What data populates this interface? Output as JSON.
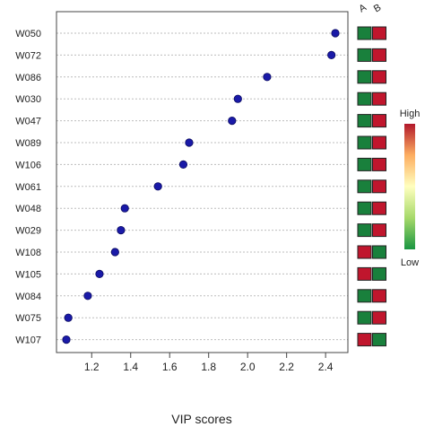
{
  "chart_data": {
    "type": "scatter",
    "title": "",
    "xlabel": "VIP scores",
    "ylabel": "",
    "xlim": [
      1.05,
      2.5
    ],
    "xticks": [
      "1.2",
      "1.4",
      "1.6",
      "1.8",
      "2.0",
      "2.2",
      "2.4"
    ],
    "grid": true,
    "categories": [
      "W050",
      "W072",
      "W086",
      "W030",
      "W047",
      "W089",
      "W106",
      "W061",
      "W048",
      "W029",
      "W108",
      "W105",
      "W084",
      "W075",
      "W107"
    ],
    "values": [
      2.45,
      2.43,
      2.1,
      1.95,
      1.92,
      1.7,
      1.67,
      1.54,
      1.37,
      1.35,
      1.32,
      1.24,
      1.18,
      1.08,
      1.07
    ],
    "point_color": "#1a1aa8",
    "heatmap": {
      "columns": [
        "A",
        "B"
      ],
      "levels": [
        [
          "low",
          "high"
        ],
        [
          "low",
          "high"
        ],
        [
          "low",
          "high"
        ],
        [
          "low",
          "high"
        ],
        [
          "low",
          "high"
        ],
        [
          "low",
          "high"
        ],
        [
          "low",
          "high"
        ],
        [
          "low",
          "high"
        ],
        [
          "low",
          "high"
        ],
        [
          "low",
          "high"
        ],
        [
          "high",
          "low"
        ],
        [
          "high",
          "low"
        ],
        [
          "low",
          "high"
        ],
        [
          "low",
          "high"
        ],
        [
          "high",
          "low"
        ]
      ],
      "high_color": "#c0162d",
      "low_color": "#19803c"
    },
    "colorbar": {
      "high_label": "High",
      "low_label": "Low",
      "gradient": [
        "#1a9641",
        "#a6d96a",
        "#ffffbf",
        "#fdae61",
        "#b2182b"
      ]
    }
  }
}
